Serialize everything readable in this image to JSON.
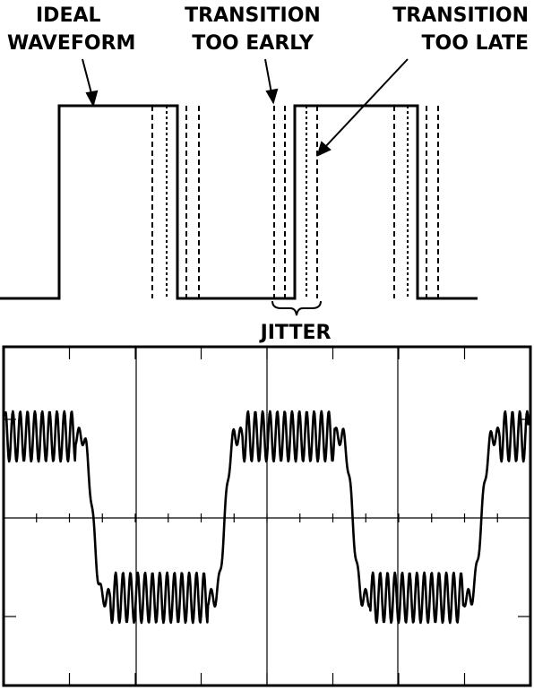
{
  "labels": {
    "ideal_line1": "IDEAL",
    "ideal_line2": "WAVEFORM",
    "early_line1": "TRANSITION",
    "early_line2": "TOO EARLY",
    "late_line1": "TRANSITION",
    "late_line2": "TOO LATE",
    "jitter": "JITTER"
  },
  "colors": {
    "ink": "#000000",
    "background": "#ffffff"
  },
  "oscilloscope": {
    "grid_divisions_x": 8,
    "grid_divisions_y": 3
  }
}
